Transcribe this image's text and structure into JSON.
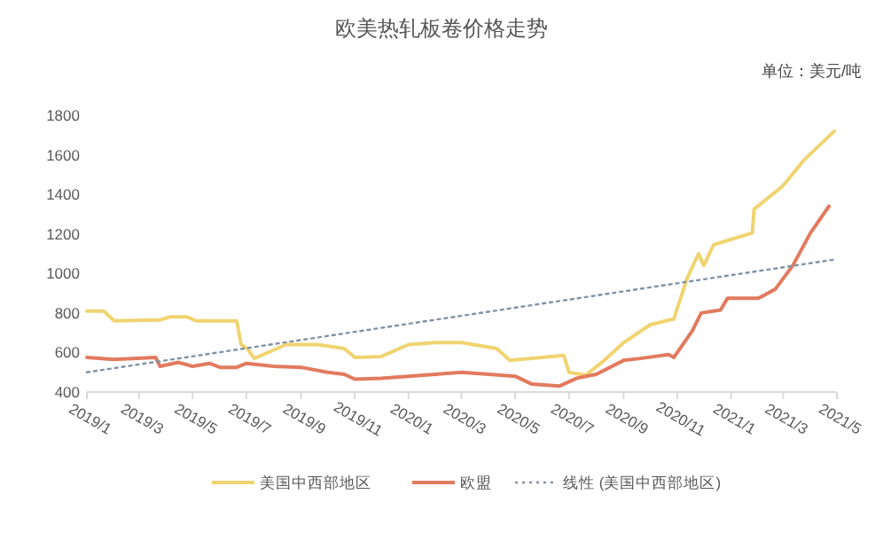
{
  "chart_data": {
    "type": "line",
    "title": "欧美热轧板卷价格走势",
    "annotations": [
      "单位：美元/吨"
    ],
    "xlim": [
      "2019-01-01",
      "2021-05-01"
    ],
    "ylim": [
      400,
      1800
    ],
    "yticks": [
      400,
      600,
      800,
      1000,
      1200,
      1400,
      1600,
      1800
    ],
    "xticks": [
      {
        "value": "2019-01-01",
        "label": "2019/1"
      },
      {
        "value": "2019-03-01",
        "label": "2019/3"
      },
      {
        "value": "2019-05-01",
        "label": "2019/5"
      },
      {
        "value": "2019-07-01",
        "label": "2019/7"
      },
      {
        "value": "2019-09-01",
        "label": "2019/9"
      },
      {
        "value": "2019-11-01",
        "label": "2019/11"
      },
      {
        "value": "2020-01-01",
        "label": "2020/1"
      },
      {
        "value": "2020-03-01",
        "label": "2020/3"
      },
      {
        "value": "2020-05-01",
        "label": "2020/5"
      },
      {
        "value": "2020-07-01",
        "label": "2020/7"
      },
      {
        "value": "2020-09-01",
        "label": "2020/9"
      },
      {
        "value": "2020-11-01",
        "label": "2020/11"
      },
      {
        "value": "2021-01-01",
        "label": "2021/1"
      },
      {
        "value": "2021-03-01",
        "label": "2021/3"
      },
      {
        "value": "2021-05-01",
        "label": "2021/5"
      }
    ],
    "grid": false,
    "legend": "bottom",
    "series": [
      {
        "name": "美国中西部地区",
        "color": "#f0d470",
        "line_style": "solid",
        "x": [
          "2019-01-01",
          "2019-01-20",
          "2019-02-01",
          "2019-03-25",
          "2019-04-05",
          "2019-04-25",
          "2019-05-05",
          "2019-06-20",
          "2019-06-25",
          "2019-07-02",
          "2019-07-10",
          "2019-08-15",
          "2019-09-20",
          "2019-10-20",
          "2019-11-01",
          "2019-12-01",
          "2020-01-01",
          "2020-02-01",
          "2020-03-01",
          "2020-04-10",
          "2020-04-25",
          "2020-05-20",
          "2020-06-25",
          "2020-07-01",
          "2020-07-20",
          "2020-08-10",
          "2020-09-01",
          "2020-10-01",
          "2020-10-28",
          "2020-11-12",
          "2020-11-25",
          "2020-12-01",
          "2020-12-12",
          "2021-01-03",
          "2021-01-25",
          "2021-01-27",
          "2021-02-28",
          "2021-03-25",
          "2021-04-28"
        ],
        "values": [
          810,
          810,
          760,
          765,
          780,
          780,
          760,
          760,
          640,
          620,
          570,
          640,
          640,
          620,
          575,
          580,
          640,
          650,
          650,
          620,
          560,
          570,
          585,
          500,
          485,
          560,
          650,
          740,
          770,
          975,
          1100,
          1040,
          1145,
          1175,
          1205,
          1325,
          1440,
          1575,
          1720
        ]
      },
      {
        "name": "欧盟",
        "color": "#e27a5e",
        "line_style": "solid",
        "x": [
          "2019-01-01",
          "2019-02-01",
          "2019-03-20",
          "2019-03-25",
          "2019-04-15",
          "2019-05-01",
          "2019-05-20",
          "2019-06-01",
          "2019-06-20",
          "2019-07-01",
          "2019-08-01",
          "2019-09-01",
          "2019-10-01",
          "2019-10-20",
          "2019-11-01",
          "2019-12-01",
          "2020-01-01",
          "2020-02-01",
          "2020-03-01",
          "2020-04-01",
          "2020-05-01",
          "2020-05-20",
          "2020-06-20",
          "2020-07-10",
          "2020-08-01",
          "2020-09-01",
          "2020-09-20",
          "2020-10-22",
          "2020-10-28",
          "2020-11-18",
          "2020-11-28",
          "2020-12-20",
          "2020-12-28",
          "2021-02-01",
          "2021-02-20",
          "2021-03-12",
          "2021-04-01",
          "2021-04-22"
        ],
        "values": [
          575,
          565,
          575,
          530,
          550,
          530,
          545,
          525,
          525,
          545,
          530,
          525,
          500,
          490,
          465,
          470,
          480,
          490,
          500,
          490,
          480,
          440,
          430,
          470,
          490,
          560,
          570,
          590,
          575,
          710,
          800,
          815,
          875,
          875,
          920,
          1040,
          1205,
          1340
        ]
      },
      {
        "name": "线性 (美国中西部地区)",
        "color": "#7f93a8",
        "line_style": "dotted",
        "x": [
          "2019-01-01",
          "2021-04-28"
        ],
        "values": [
          500,
          1070
        ]
      }
    ]
  }
}
